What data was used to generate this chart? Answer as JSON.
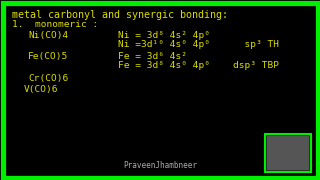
{
  "background_color": "#000000",
  "border_color": "#00ee00",
  "text_color": "#dddd00",
  "title": "metal carbonyl and synergic bonding:",
  "line1": "1.  monomeric :",
  "col1_r1": "Ni(CO)4",
  "col2_r1": "Ni = 3d⁸ 4s² 4p⁰",
  "col2_r2": "Ni =3d¹⁰ 4s⁰ 4p⁰      sp³ TH",
  "col1_r2": "Fe(CO)5",
  "col2_r3": "Fe = 3d⁶ 4s²",
  "col2_r4": "Fe = 3d⁸ 4s⁰ 4p⁰    dsp³ TBP",
  "col1_r3": "Cr(CO)6",
  "col1_r4": "V(CO)6",
  "watermark": "PraveenJhambneer",
  "fontsize_title": 7.2,
  "fontsize_body": 6.8,
  "fontsize_small": 5.5
}
